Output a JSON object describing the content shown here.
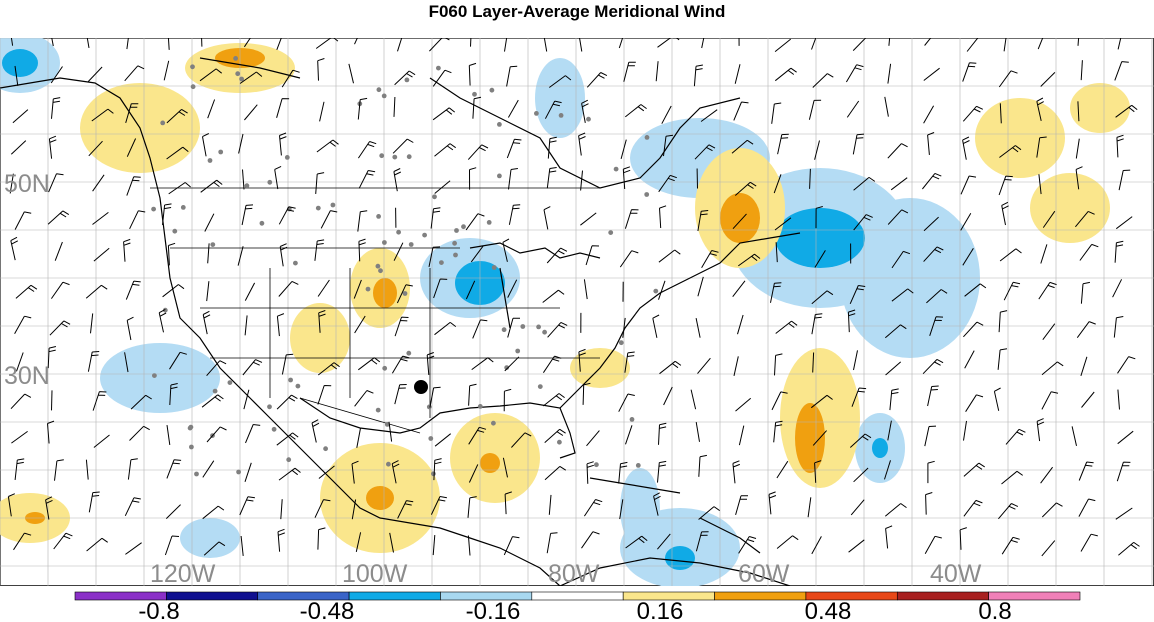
{
  "title": "F060 Layer-Average Meridional Wind",
  "map": {
    "lat_labels": [
      "50N",
      "30N"
    ],
    "lon_labels": [
      "120W",
      "100W",
      "80W",
      "60W",
      "40W"
    ],
    "label_color": "#8c8c8c",
    "grid_color": "#b4b4b4"
  },
  "colorbar": {
    "tick_labels": [
      "-0.8",
      "-0.48",
      "-0.16",
      "0.16",
      "0.48",
      "0.8"
    ],
    "colors": [
      "#8b30c8",
      "#101090",
      "#3a64c8",
      "#10aae6",
      "#a8d8f0",
      "#ffffff",
      "#fae68c",
      "#f0a010",
      "#e84818",
      "#a82020",
      "#f080b8"
    ]
  },
  "colors": {
    "pos_light": "#fae68c",
    "pos_mid": "#f0a010",
    "neg_light": "#b4dcf4",
    "neg_mid": "#10aae6",
    "coast": "#000000",
    "stations": "#808080"
  }
}
